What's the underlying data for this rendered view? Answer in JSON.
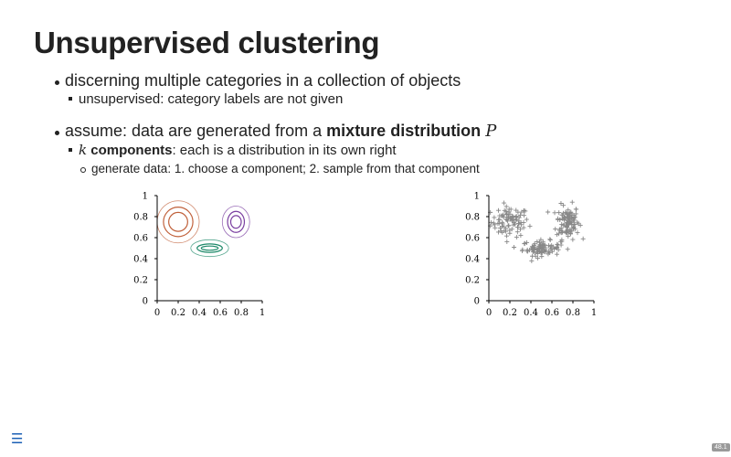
{
  "slide": {
    "title": "Unsupervised clustering",
    "bullets": {
      "b1": "discerning multiple categories in a collection of objects",
      "b1_1": "unsupervised: category labels are not given",
      "b2_pre": "assume: data are generated from a ",
      "b2_bold": "mixture distribution",
      "b2_math": "P",
      "b2_1_math": "k",
      "b2_1_bold": "components",
      "b2_1_rest": ": each is a distribution in its own right",
      "b2_1_1": "generate data: 1. choose a component; 2. sample from that component"
    }
  },
  "footer": {
    "menu_icon": "menu-icon",
    "slide_number": "48.1"
  },
  "chart_data": [
    {
      "type": "contour",
      "title": "",
      "xlabel": "",
      "ylabel": "",
      "xlim": [
        0,
        1
      ],
      "ylim": [
        0,
        1
      ],
      "xticks": [
        "0",
        "0.2",
        "0.4",
        "0.6",
        "0.8",
        "1"
      ],
      "yticks": [
        "0",
        "0.2",
        "0.4",
        "0.6",
        "0.8",
        "1"
      ],
      "grid": false,
      "components": [
        {
          "color": "#c0603a",
          "center": [
            0.2,
            0.75
          ],
          "radii": [
            [
              0.09,
              0.09
            ],
            [
              0.14,
              0.14
            ],
            [
              0.2,
              0.2
            ]
          ]
        },
        {
          "color": "#7a3fa0",
          "center": [
            0.75,
            0.75
          ],
          "radii": [
            [
              0.05,
              0.06
            ],
            [
              0.08,
              0.1
            ],
            [
              0.13,
              0.15
            ]
          ]
        },
        {
          "color": "#1f8a6a",
          "center": [
            0.5,
            0.5
          ],
          "radii": [
            [
              0.08,
              0.02
            ],
            [
              0.12,
              0.04
            ],
            [
              0.18,
              0.08
            ]
          ]
        }
      ]
    },
    {
      "type": "scatter",
      "title": "",
      "xlabel": "",
      "ylabel": "",
      "xlim": [
        0,
        1
      ],
      "ylim": [
        0,
        1
      ],
      "xticks": [
        "0",
        "0.2",
        "0.4",
        "0.6",
        "0.8",
        "1"
      ],
      "yticks": [
        "0",
        "0.2",
        "0.4",
        "0.6",
        "0.8",
        "1"
      ],
      "grid": false,
      "marker": "+",
      "color": "#888888",
      "clusters": [
        {
          "center": [
            0.2,
            0.75
          ],
          "spread": [
            0.1,
            0.08
          ],
          "n": 90
        },
        {
          "center": [
            0.75,
            0.75
          ],
          "spread": [
            0.06,
            0.09
          ],
          "n": 110
        },
        {
          "center": [
            0.5,
            0.5
          ],
          "spread": [
            0.1,
            0.04
          ],
          "n": 90
        }
      ]
    }
  ]
}
